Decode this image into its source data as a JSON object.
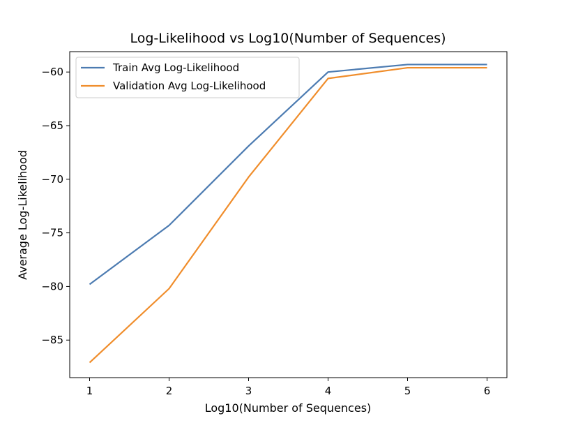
{
  "chart_data": {
    "type": "line",
    "title": "Log-Likelihood vs Log10(Number of Sequences)",
    "xlabel": "Log10(Number of Sequences)",
    "ylabel": "Average Log-Likelihood",
    "x": [
      1,
      2,
      3,
      4,
      5,
      6
    ],
    "xlim": [
      0.75,
      6.25
    ],
    "ylim": [
      -88.5,
      -58.1
    ],
    "xticks": [
      1,
      2,
      3,
      4,
      5,
      6
    ],
    "yticks": [
      -85,
      -80,
      -75,
      -70,
      -65,
      -60
    ],
    "xtick_labels": [
      "1",
      "2",
      "3",
      "4",
      "5",
      "6"
    ],
    "ytick_labels": [
      "−85",
      "−80",
      "−75",
      "−70",
      "−65",
      "−60"
    ],
    "grid": false,
    "legend_position": "top-left",
    "series": [
      {
        "name": "Train Avg Log-Likelihood",
        "color": "#4c7bb1",
        "values": [
          -79.8,
          -74.3,
          -66.9,
          -60.0,
          -59.3,
          -59.3
        ]
      },
      {
        "name": "Validation Avg Log-Likelihood",
        "color": "#f08d2b",
        "values": [
          -87.1,
          -80.2,
          -69.8,
          -60.6,
          -59.6,
          -59.6
        ]
      }
    ]
  }
}
